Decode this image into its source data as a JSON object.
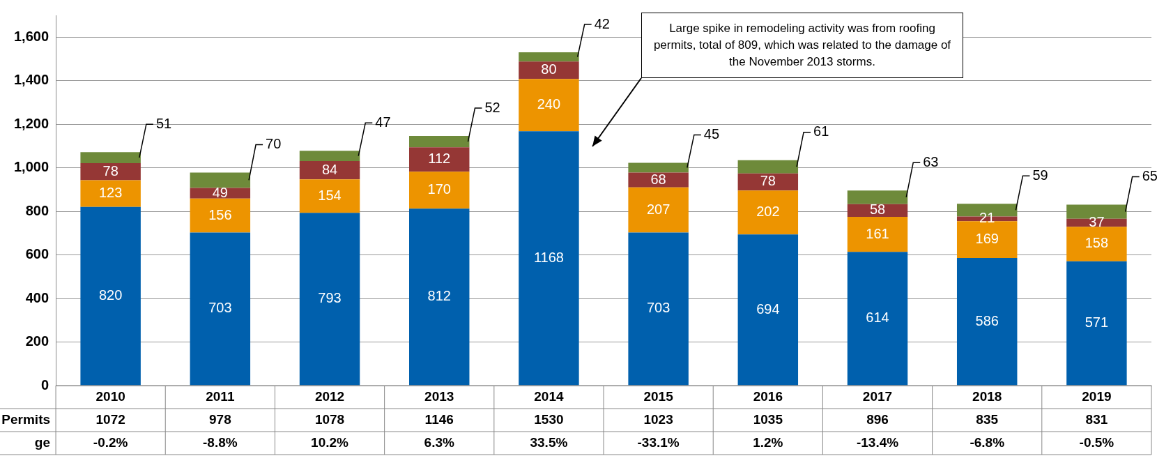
{
  "chart_data": {
    "type": "bar",
    "stacked": true,
    "categories": [
      "2010",
      "2011",
      "2012",
      "2013",
      "2014",
      "2015",
      "2016",
      "2017",
      "2018",
      "2019"
    ],
    "series": [
      {
        "color": "#0060ad",
        "values": [
          820,
          703,
          793,
          812,
          1168,
          703,
          694,
          614,
          586,
          571
        ]
      },
      {
        "color": "#ed9400",
        "values": [
          123,
          156,
          154,
          170,
          240,
          207,
          202,
          161,
          169,
          158
        ]
      },
      {
        "color": "#953735",
        "values": [
          78,
          49,
          84,
          112,
          80,
          68,
          78,
          58,
          21,
          37
        ]
      },
      {
        "color": "#6e8a3a",
        "values": [
          51,
          70,
          47,
          52,
          42,
          45,
          61,
          63,
          59,
          65
        ]
      }
    ],
    "ylim": [
      0,
      1700
    ],
    "yticks": [
      0,
      {
        "value": 200,
        "label": "200"
      },
      {
        "value": 400,
        "label": "400"
      },
      {
        "value": 600,
        "label": "600"
      },
      {
        "value": 800,
        "label": "800"
      },
      {
        "value": 1000,
        "label": "1,000"
      },
      {
        "value": 1200,
        "label": "1,200"
      },
      {
        "value": 1400,
        "label": "1,400"
      },
      {
        "value": 1600,
        "label": "1,600"
      }
    ],
    "grid": "y",
    "legend": false,
    "data_labels": true,
    "totals": [
      "1072",
      "978",
      "1078",
      "1146",
      "1530",
      "1023",
      "1035",
      "896",
      "835",
      "831"
    ],
    "annotations": [
      "Large spike in remodeling activity was from roofing permits, total of 809, which was related to the damage of the November 2013 storms.",
      "Permits",
      "ge",
      "-0.2%",
      "-8.8%",
      "10.2%",
      "6.3%",
      "33.5%",
      "-33.1%",
      "1.2%",
      "-13.4%",
      "-6.8%",
      "-0.5%"
    ]
  }
}
